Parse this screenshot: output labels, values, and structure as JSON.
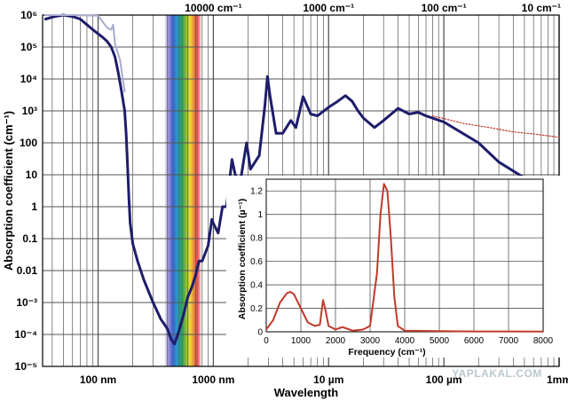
{
  "chart_data": [
    {
      "type": "line",
      "xlabel": "Wavelength",
      "ylabel": "Absorption coefficient (cm⁻¹)",
      "x_scale": "log",
      "y_scale": "log",
      "x_unit": "m",
      "xlim": [
        3.3e-08,
        0.001
      ],
      "ylim": [
        1e-05,
        1000000.0
      ],
      "grid": true,
      "bottom_ticks": [
        {
          "x": 1e-07,
          "label": "100 nm"
        },
        {
          "x": 1e-06,
          "label": "1000 nm"
        },
        {
          "x": 1e-05,
          "label": "10 µm"
        },
        {
          "x": 0.0001,
          "label": "100 µm"
        },
        {
          "x": 0.001,
          "label": "1mm"
        }
      ],
      "top_ticks": [
        {
          "x": 1e-06,
          "label": "10000 cm⁻¹"
        },
        {
          "x": 1e-05,
          "label": "1000 cm⁻¹"
        },
        {
          "x": 0.0001,
          "label": "100 cm⁻¹"
        },
        {
          "x": 0.001,
          "label": "10 cm⁻¹"
        }
      ],
      "left_ticks": [
        {
          "y": 1000000.0,
          "label": "10⁶"
        },
        {
          "y": 100000.0,
          "label": "10⁵"
        },
        {
          "y": 10000.0,
          "label": "10⁴"
        },
        {
          "y": 1000.0,
          "label": "10³"
        },
        {
          "y": 100,
          "label": "100"
        },
        {
          "y": 10,
          "label": "10"
        },
        {
          "y": 1,
          "label": "1"
        },
        {
          "y": 0.1,
          "label": "0.1"
        },
        {
          "y": 0.01,
          "label": "0.01"
        },
        {
          "y": 0.001,
          "label": "10⁻³"
        },
        {
          "y": 0.0001,
          "label": "10⁻⁴"
        },
        {
          "y": 1e-05,
          "label": "10⁻⁵"
        }
      ],
      "visible_band_m": [
        3.8e-07,
        7.8e-07
      ],
      "colors": {
        "liquid": "#1d1d6b",
        "ice": "#a9abd0",
        "extension": "#c0392b",
        "grid": "#555555"
      },
      "series": [
        {
          "key": "liquid",
          "style": "solid",
          "points": [
            [
              3.5e-08,
              750000.0
            ],
            [
              4.2e-08,
              900000.0
            ],
            [
              5e-08,
              1000000.0
            ],
            [
              6e-08,
              900000.0
            ],
            [
              7e-08,
              750000.0
            ],
            [
              8e-08,
              500000.0
            ],
            [
              9e-08,
              350000.0
            ],
            [
              1e-07,
              260000.0
            ],
            [
              1.1e-07,
              200000.0
            ],
            [
              1.2e-07,
              150000.0
            ],
            [
              1.3e-07,
              100000.0
            ],
            [
              1.4e-07,
              50000.0
            ],
            [
              1.5e-07,
              15000.0
            ],
            [
              1.6e-07,
              4000.0
            ],
            [
              1.7e-07,
              1000.0
            ],
            [
              1.75e-07,
              200.0
            ],
            [
              1.8e-07,
              20
            ],
            [
              1.85e-07,
              2
            ],
            [
              1.9e-07,
              0.3
            ],
            [
              2e-07,
              0.07
            ],
            [
              2.2e-07,
              0.02
            ],
            [
              2.5e-07,
              0.005
            ],
            [
              3e-07,
              0.001
            ],
            [
              3.5e-07,
              0.0003
            ],
            [
              4e-07,
              0.00015
            ],
            [
              4.3e-07,
              7e-05
            ],
            [
              4.6e-07,
              5e-05
            ],
            [
              5e-07,
              0.00012
            ],
            [
              5.5e-07,
              0.0004
            ],
            [
              6e-07,
              0.0015
            ],
            [
              6.5e-07,
              0.003
            ],
            [
              7e-07,
              0.007
            ],
            [
              7.5e-07,
              0.02
            ],
            [
              8e-07,
              0.02
            ],
            [
              9e-07,
              0.06
            ],
            [
              9.7e-07,
              0.4
            ],
            [
              1e-06,
              0.3
            ],
            [
              1.1e-06,
              0.15
            ],
            [
              1.2e-06,
              1.0
            ],
            [
              1.3e-06,
              1.0
            ],
            [
              1.45e-06,
              30
            ],
            [
              1.55e-06,
              10
            ],
            [
              1.7e-06,
              5
            ],
            [
              1.94e-06,
              100
            ],
            [
              2.1e-06,
              15
            ],
            [
              2.5e-06,
              40
            ],
            [
              2.8e-06,
              1500
            ],
            [
              2.95e-06,
              12000
            ],
            [
              3.1e-06,
              3000
            ],
            [
              3.5e-06,
              200
            ],
            [
              4e-06,
              200
            ],
            [
              4.7e-06,
              500
            ],
            [
              5.2e-06,
              300
            ],
            [
              6e-06,
              2800
            ],
            [
              7e-06,
              800
            ],
            [
              8e-06,
              700
            ],
            [
              1e-05,
              1300
            ],
            [
              1.2e-05,
              2000
            ],
            [
              1.4e-05,
              3000
            ],
            [
              1.6e-05,
              2000
            ],
            [
              1.8e-05,
              1000
            ],
            [
              2e-05,
              600
            ],
            [
              2.5e-05,
              300
            ],
            [
              3e-05,
              500
            ],
            [
              4e-05,
              1200
            ],
            [
              5e-05,
              800
            ],
            [
              6e-05,
              900
            ],
            [
              7e-05,
              700
            ],
            [
              0.0001,
              450
            ],
            [
              0.0002,
              100
            ],
            [
              0.0003,
              25
            ],
            [
              0.0005,
              8
            ],
            [
              0.0007,
              4
            ],
            [
              0.0008,
              3
            ]
          ]
        },
        {
          "key": "ice",
          "style": "solid",
          "points": [
            [
              3.5e-08,
              1000000.0
            ],
            [
              6e-08,
              1000000.0
            ],
            [
              1e-07,
              950000.0
            ],
            [
              1.2e-07,
              400000.0
            ],
            [
              1.3e-07,
              350000.0
            ],
            [
              1.35e-07,
              500000.0
            ],
            [
              1.4e-07,
              130000.0
            ],
            [
              1.55e-07,
              40000.0
            ],
            [
              1.7e-07,
              4000.0
            ]
          ]
        },
        {
          "key": "extension",
          "style": "dotted",
          "points": [
            [
              8e-05,
              700
            ],
            [
              0.00015,
              400
            ],
            [
              0.00025,
              300
            ],
            [
              0.0004,
              220
            ],
            [
              0.0006,
              190
            ],
            [
              0.001,
              150
            ]
          ]
        }
      ]
    },
    {
      "type": "line",
      "xlabel": "Frequency (cm⁻¹)",
      "ylabel": "Absorption coefficient (µ⁻¹)",
      "xlim": [
        0,
        8000
      ],
      "ylim": [
        0,
        1.3
      ],
      "grid": true,
      "x_ticks": [
        0,
        1000,
        2000,
        3000,
        4000,
        5000,
        6000,
        7000,
        8000
      ],
      "y_ticks": [
        0,
        0.2,
        0.4,
        0.6,
        0.8,
        1.0,
        1.2
      ],
      "y_tick_labels": [
        "0",
        "0.2",
        "0.4",
        "0.6",
        "0.8",
        "1",
        "1.2"
      ],
      "color": "#c0392b",
      "points": [
        [
          0,
          0.02
        ],
        [
          200,
          0.1
        ],
        [
          400,
          0.25
        ],
        [
          600,
          0.33
        ],
        [
          700,
          0.34
        ],
        [
          800,
          0.32
        ],
        [
          1000,
          0.2
        ],
        [
          1200,
          0.08
        ],
        [
          1400,
          0.05
        ],
        [
          1550,
          0.06
        ],
        [
          1640,
          0.27
        ],
        [
          1700,
          0.2
        ],
        [
          1800,
          0.05
        ],
        [
          2000,
          0.02
        ],
        [
          2100,
          0.03
        ],
        [
          2200,
          0.04
        ],
        [
          2300,
          0.03
        ],
        [
          2500,
          0.01
        ],
        [
          2800,
          0.02
        ],
        [
          3000,
          0.05
        ],
        [
          3200,
          0.5
        ],
        [
          3300,
          1.0
        ],
        [
          3400,
          1.26
        ],
        [
          3500,
          1.2
        ],
        [
          3600,
          0.8
        ],
        [
          3700,
          0.3
        ],
        [
          3800,
          0.05
        ],
        [
          4000,
          0.01
        ],
        [
          5000,
          0.005
        ],
        [
          6000,
          0.003
        ],
        [
          7000,
          0.003
        ],
        [
          8000,
          0.002
        ]
      ]
    }
  ],
  "watermark": "YAPLAKAL.COM"
}
